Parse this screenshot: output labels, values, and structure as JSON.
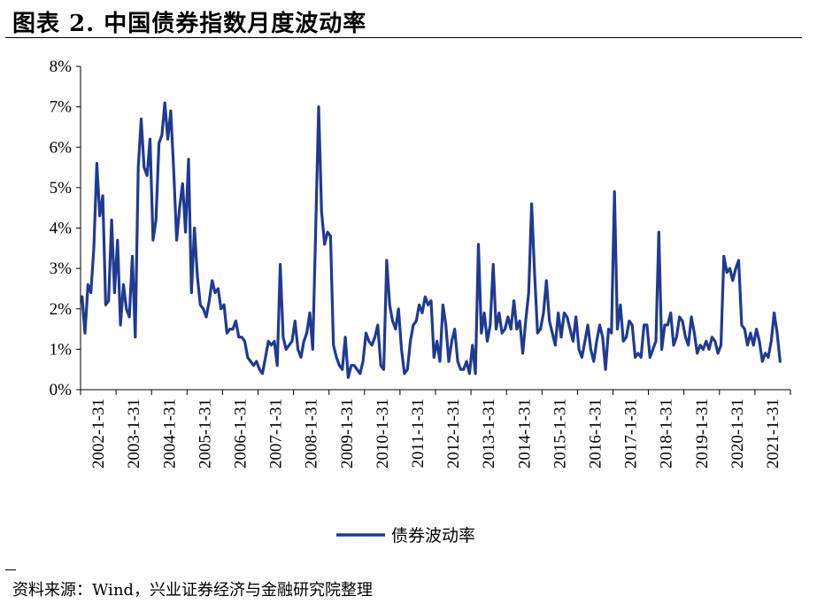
{
  "header": {
    "title": "图表 2. 中国债券指数月度波动率"
  },
  "footer": {
    "source": "资料来源：Wind，兴业证券经济与金融研究院整理"
  },
  "colors": {
    "series": "#1F3A93",
    "axis": "#000000"
  },
  "chart_data": {
    "type": "line",
    "title": "图表 2. 中国债券指数月度波动率",
    "xlabel": "",
    "ylabel": "",
    "x_ticks": [
      "2002-1-31",
      "2003-1-31",
      "2004-1-31",
      "2005-1-31",
      "2006-1-31",
      "2007-1-31",
      "2008-1-31",
      "2009-1-31",
      "2010-1-31",
      "2011-1-31",
      "2012-1-31",
      "2013-1-31",
      "2014-1-31",
      "2015-1-31",
      "2016-1-31",
      "2017-1-31",
      "2018-1-31",
      "2019-1-31",
      "2020-1-31",
      "2021-1-31"
    ],
    "y_ticks": [
      "0%",
      "1%",
      "2%",
      "3%",
      "4%",
      "5%",
      "6%",
      "7%",
      "8%"
    ],
    "ylim": [
      0,
      8
    ],
    "x_start": "2002-01",
    "grid": false,
    "legend_position": "bottom",
    "series": [
      {
        "name": "债券波动率",
        "values": [
          2.3,
          1.4,
          2.6,
          2.4,
          3.5,
          5.6,
          4.3,
          4.8,
          2.1,
          2.2,
          4.2,
          2.4,
          3.7,
          1.6,
          2.6,
          2.0,
          1.8,
          3.3,
          1.3,
          5.5,
          6.7,
          5.5,
          5.3,
          6.2,
          3.7,
          4.2,
          6.1,
          6.3,
          7.1,
          6.2,
          6.9,
          5.4,
          3.7,
          4.5,
          5.1,
          3.9,
          5.7,
          2.4,
          4.0,
          2.8,
          2.1,
          2.0,
          1.8,
          2.2,
          2.7,
          2.4,
          2.5,
          2.0,
          2.1,
          1.4,
          1.5,
          1.5,
          1.7,
          1.3,
          1.3,
          1.2,
          0.8,
          0.7,
          0.6,
          0.7,
          0.5,
          0.4,
          0.8,
          1.2,
          1.1,
          1.2,
          0.6,
          3.1,
          1.3,
          1.0,
          1.1,
          1.2,
          1.7,
          1.0,
          0.8,
          1.2,
          1.4,
          1.9,
          1.0,
          4.0,
          7.0,
          4.4,
          3.6,
          3.9,
          3.8,
          1.1,
          0.8,
          0.6,
          0.5,
          1.3,
          0.3,
          0.6,
          0.6,
          0.5,
          0.4,
          0.7,
          1.4,
          1.2,
          1.1,
          1.3,
          1.6,
          0.6,
          0.5,
          3.2,
          2.1,
          1.7,
          1.5,
          2.0,
          1.0,
          0.4,
          0.5,
          1.2,
          1.6,
          1.7,
          2.1,
          1.9,
          2.3,
          2.1,
          2.2,
          0.8,
          1.2,
          0.7,
          2.1,
          1.6,
          0.7,
          1.2,
          1.5,
          0.7,
          0.5,
          0.5,
          0.7,
          0.4,
          1.1,
          0.4,
          3.6,
          1.4,
          1.9,
          1.2,
          1.6,
          3.1,
          1.5,
          1.9,
          1.4,
          1.5,
          1.8,
          1.5,
          2.2,
          1.5,
          1.7,
          0.9,
          1.7,
          2.4,
          4.6,
          2.9,
          1.4,
          1.5,
          1.9,
          2.7,
          1.7,
          1.4,
          1.1,
          1.9,
          1.3,
          1.9,
          1.8,
          1.5,
          1.2,
          1.8,
          1.0,
          0.8,
          1.2,
          1.6,
          1.0,
          0.7,
          1.2,
          1.6,
          1.3,
          0.5,
          1.5,
          1.4,
          4.9,
          1.5,
          2.1,
          1.2,
          1.3,
          1.7,
          1.6,
          0.8,
          0.9,
          0.8,
          1.6,
          1.6,
          0.8,
          1.0,
          1.2,
          3.9,
          1.0,
          1.6,
          1.6,
          1.9,
          1.1,
          1.3,
          1.8,
          1.7,
          1.3,
          1.1,
          1.8,
          1.4,
          0.9,
          1.1,
          1.0,
          1.2,
          1.0,
          1.3,
          1.2,
          0.9,
          1.1,
          3.3,
          2.9,
          3.0,
          2.7,
          3.0,
          3.2,
          1.6,
          1.5,
          1.1,
          1.4,
          1.1,
          1.5,
          1.2,
          0.7,
          0.9,
          0.8,
          1.2,
          1.9,
          1.4,
          0.7
        ]
      }
    ]
  }
}
